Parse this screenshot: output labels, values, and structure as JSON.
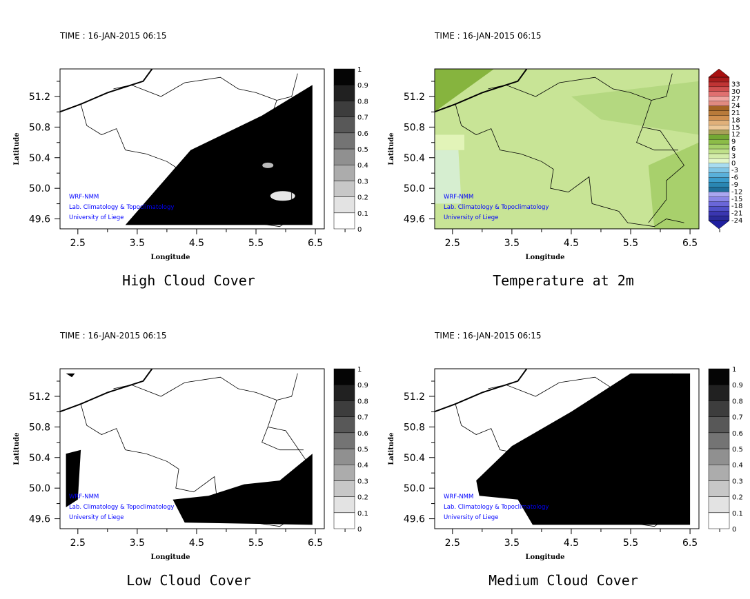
{
  "chart_data": [
    {
      "type": "heatmap",
      "time_label": "TIME : 16-JAN-2015 06:15",
      "title": "High Cloud Cover",
      "xlabel": "Longitude",
      "ylabel": "Latitude",
      "xticks": [
        "2.5",
        "3.5",
        "4.5",
        "5.5",
        "6.5"
      ],
      "yticks": [
        "49.6",
        "50.0",
        "50.4",
        "50.8",
        "51.2"
      ],
      "xlim": [
        2.2,
        6.65
      ],
      "ylim": [
        49.47,
        51.56
      ],
      "colorbar": [
        "0",
        "0.1",
        "0.2",
        "0.3",
        "0.4",
        "0.5",
        "0.6",
        "0.7",
        "0.8",
        "0.9",
        "1"
      ],
      "annotation": [
        "WRF-NMM",
        "Lab. Climatology & Topoclimatology",
        "University of Liege"
      ]
    },
    {
      "type": "heatmap",
      "time_label": "TIME : 16-JAN-2015 06:15",
      "title": "Temperature at 2m",
      "xlabel": "Longitude",
      "ylabel": "Latitude",
      "xticks": [
        "2.5",
        "3.5",
        "4.5",
        "5.5",
        "6.5"
      ],
      "yticks": [
        "49.6",
        "50.0",
        "50.4",
        "50.8",
        "51.2"
      ],
      "xlim": [
        2.2,
        6.65
      ],
      "ylim": [
        49.47,
        51.56
      ],
      "colorbar": [
        "-24",
        "-21",
        "-18",
        "-15",
        "-12",
        "-9",
        "-6",
        "-3",
        "0",
        "3",
        "6",
        "9",
        "12",
        "15",
        "18",
        "21",
        "24",
        "27",
        "30",
        "33"
      ],
      "annotation": [
        "WRF-NMM",
        "Lab. Climatology & Topoclimatology",
        "University of Liege"
      ]
    },
    {
      "type": "heatmap",
      "time_label": "TIME : 16-JAN-2015 06:15",
      "title": "Low Cloud Cover",
      "xlabel": "Longitude",
      "ylabel": "Latitude",
      "xticks": [
        "2.5",
        "3.5",
        "4.5",
        "5.5",
        "6.5"
      ],
      "yticks": [
        "49.6",
        "50.0",
        "50.4",
        "50.8",
        "51.2"
      ],
      "xlim": [
        2.2,
        6.65
      ],
      "ylim": [
        49.47,
        51.56
      ],
      "colorbar": [
        "0",
        "0.1",
        "0.2",
        "0.3",
        "0.4",
        "0.5",
        "0.6",
        "0.7",
        "0.8",
        "0.9",
        "1"
      ],
      "annotation": [
        "WRF-NMM",
        "Lab. Climatology & Topoclimatology",
        "University of Liege"
      ]
    },
    {
      "type": "heatmap",
      "time_label": "TIME : 16-JAN-2015 06:15",
      "title": "Medium Cloud Cover",
      "xlabel": "Longitude",
      "ylabel": "Latitude",
      "xticks": [
        "2.5",
        "3.5",
        "4.5",
        "5.5",
        "6.5"
      ],
      "yticks": [
        "49.6",
        "50.0",
        "50.4",
        "50.8",
        "51.2"
      ],
      "xlim": [
        2.2,
        6.65
      ],
      "ylim": [
        49.47,
        51.56
      ],
      "colorbar": [
        "0",
        "0.1",
        "0.2",
        "0.3",
        "0.4",
        "0.5",
        "0.6",
        "0.7",
        "0.8",
        "0.9",
        "1"
      ],
      "annotation": [
        "WRF-NMM",
        "Lab. Climatology & Topoclimatology",
        "University of Liege"
      ]
    }
  ],
  "colors": {
    "annotation": "#0000ff",
    "cloud": "#000000",
    "temp_mid": "#d4e89a"
  }
}
